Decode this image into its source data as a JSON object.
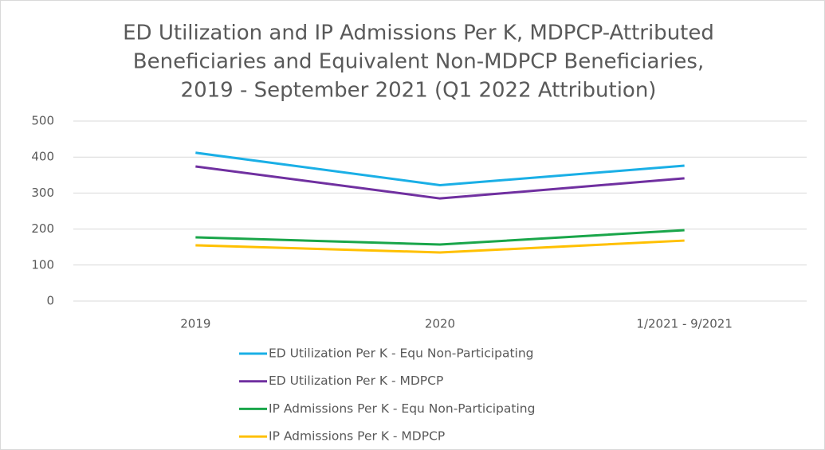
{
  "chart_data": {
    "type": "line",
    "title": [
      "ED Utilization and IP Admissions Per K, MDPCP-Attributed",
      "Beneficiaries and Equivalent Non-MDPCP Beneficiaries,",
      "2019 - September 2021 (Q1 2022 Attribution)"
    ],
    "categories": [
      "2019",
      "2020",
      "1/2021 - 9/2021"
    ],
    "series": [
      {
        "name": "ED Utilization Per K - Equ Non-Participating",
        "color": "#1aafe6",
        "values": [
          412,
          322,
          376
        ]
      },
      {
        "name": "ED Utilization Per K - MDPCP",
        "color": "#7030a0",
        "values": [
          374,
          285,
          341
        ]
      },
      {
        "name": "IP Admissions Per K - Equ Non-Participating",
        "color": "#1aa64a",
        "values": [
          177,
          157,
          197
        ]
      },
      {
        "name": "IP Admissions Per K - MDPCP",
        "color": "#ffc000",
        "values": [
          155,
          135,
          168
        ]
      }
    ],
    "ylim": [
      0,
      500
    ],
    "yticks": [
      0,
      100,
      200,
      300,
      400,
      500
    ],
    "grid": true,
    "legend": "bottom"
  }
}
